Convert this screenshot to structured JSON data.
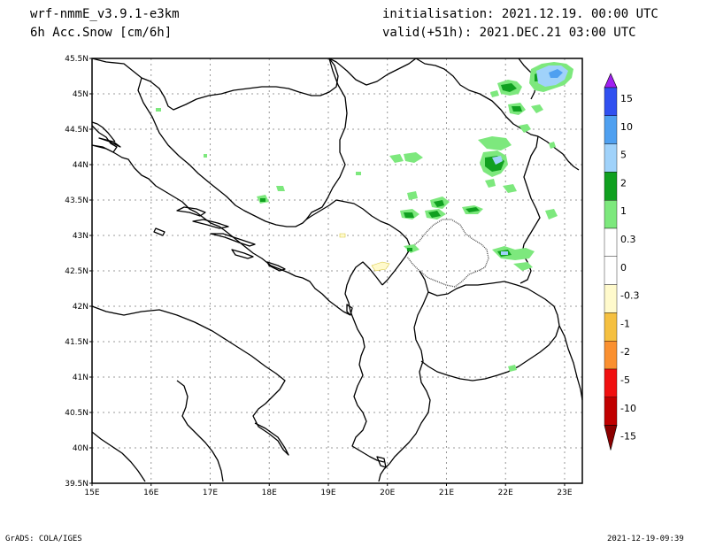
{
  "header": {
    "model": "wrf-nmmE_v3.9.1-e3km",
    "field": "6h Acc.Snow [cm/6h]",
    "init": "initialisation: 2021.12.19.  00:00 UTC",
    "valid": "valid(+51h): 2021.DEC.21 03:00 UTC"
  },
  "footer": {
    "left": "GrADS: COLA/IGES",
    "right": "2021-12-19-09:39"
  },
  "map": {
    "lon_range": [
      15,
      23.3
    ],
    "lat_range": [
      39.5,
      45.5
    ],
    "lat_ticks": [
      "45.5N",
      "45N",
      "44.5N",
      "44N",
      "43.5N",
      "43N",
      "42.5N",
      "42N",
      "41.5N",
      "41N",
      "40.5N",
      "40N",
      "39.5N"
    ],
    "lon_ticks": [
      "15E",
      "16E",
      "17E",
      "18E",
      "19E",
      "20E",
      "21E",
      "22E",
      "23E"
    ]
  },
  "colorbar": {
    "levels": [
      "15",
      "10",
      "5",
      "2",
      "1",
      "0.3",
      "0",
      "-0.3",
      "-1",
      "-2",
      "-5",
      "-10",
      "-15"
    ],
    "colors": [
      "#a020f0",
      "#3050f0",
      "#4fa0f0",
      "#a0d2fa",
      "#10a020",
      "#7de87d",
      "#ffffff",
      "#ffffff",
      "#fffacc",
      "#f5c040",
      "#fa9030",
      "#f01010",
      "#c00000",
      "#8b0000"
    ]
  }
}
